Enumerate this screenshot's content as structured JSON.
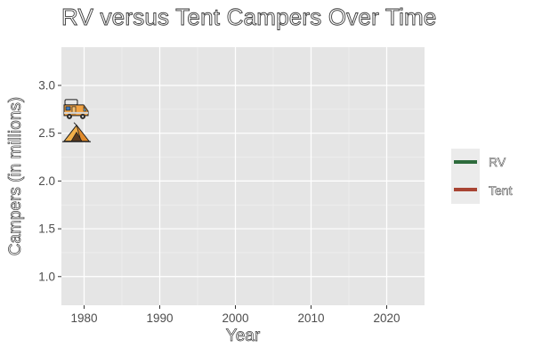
{
  "chart_data": {
    "type": "line",
    "title": "RV versus Tent Campers Over Time",
    "xlabel": "Year",
    "ylabel": "Campers (in millions)",
    "xlim": [
      1977,
      2025
    ],
    "ylim": [
      0.7,
      3.4
    ],
    "x_ticks": [
      1980,
      1990,
      2000,
      2010,
      2020
    ],
    "y_ticks": [
      1.0,
      1.5,
      2.0,
      2.5,
      3.0
    ],
    "y_tick_labels": [
      "1.0",
      "1.5",
      "2.0",
      "2.5",
      "3.0"
    ],
    "grid": true,
    "legend_position": "right",
    "series": [
      {
        "name": "RV",
        "color": "#2d6b3c",
        "icon": "rv-icon",
        "points": [
          {
            "x": 1979,
            "y": 2.74
          }
        ]
      },
      {
        "name": "Tent",
        "color": "#a84433",
        "icon": "tent-icon",
        "points": [
          {
            "x": 1979,
            "y": 2.5
          }
        ]
      }
    ]
  }
}
